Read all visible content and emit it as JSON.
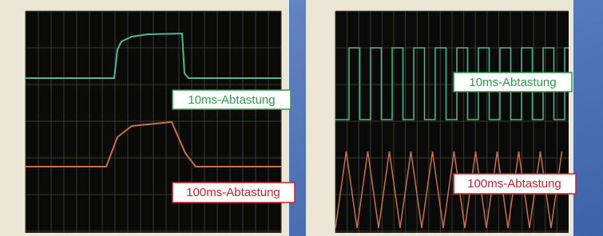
{
  "panels": [
    {
      "labels": [
        "10ms-Abtastung",
        "100ms-Abtastung"
      ]
    },
    {
      "labels": [
        "10ms-Abtastung",
        "100ms-Abtastung"
      ]
    }
  ]
}
